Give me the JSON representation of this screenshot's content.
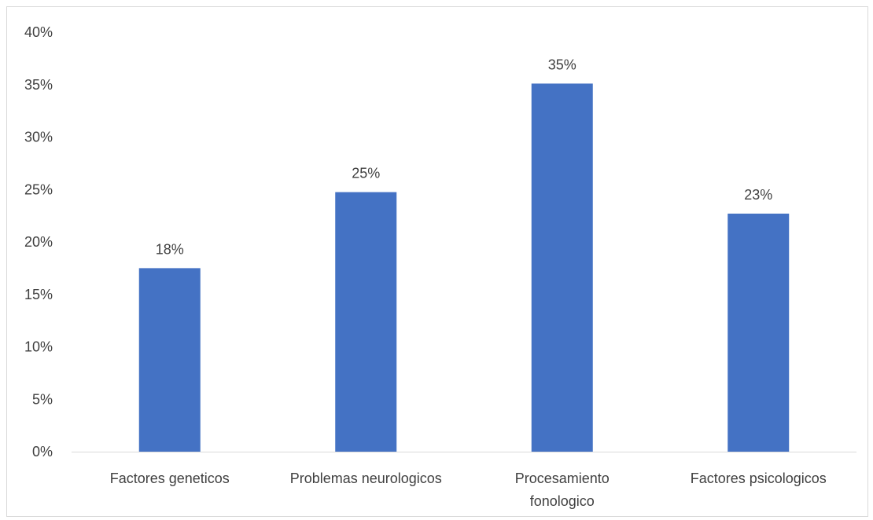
{
  "chart_data": {
    "type": "bar",
    "title": "",
    "xlabel": "",
    "ylabel": "",
    "categories": [
      "Factores geneticos",
      "Problemas neurologicos",
      "Procesamiento fonologico",
      "Factores psicologicos"
    ],
    "category_lines": [
      [
        "Factores geneticos"
      ],
      [
        "Problemas neurologicos"
      ],
      [
        "Procesamiento",
        "fonologico"
      ],
      [
        "Factores psicologicos"
      ]
    ],
    "values": [
      17.5,
      24.75,
      35.1,
      22.7
    ],
    "data_labels": [
      "18%",
      "25%",
      "35%",
      "23%"
    ],
    "ylim": [
      0,
      40
    ],
    "yticks": [
      0,
      5,
      10,
      15,
      20,
      25,
      30,
      35,
      40
    ],
    "ytick_labels": [
      "0%",
      "5%",
      "10%",
      "15%",
      "20%",
      "25%",
      "30%",
      "35%",
      "40%"
    ],
    "grid": false,
    "legend": "none",
    "bar_color": "#4472c4",
    "axis_color": "#d9d9d9",
    "text_color": "#404040"
  }
}
